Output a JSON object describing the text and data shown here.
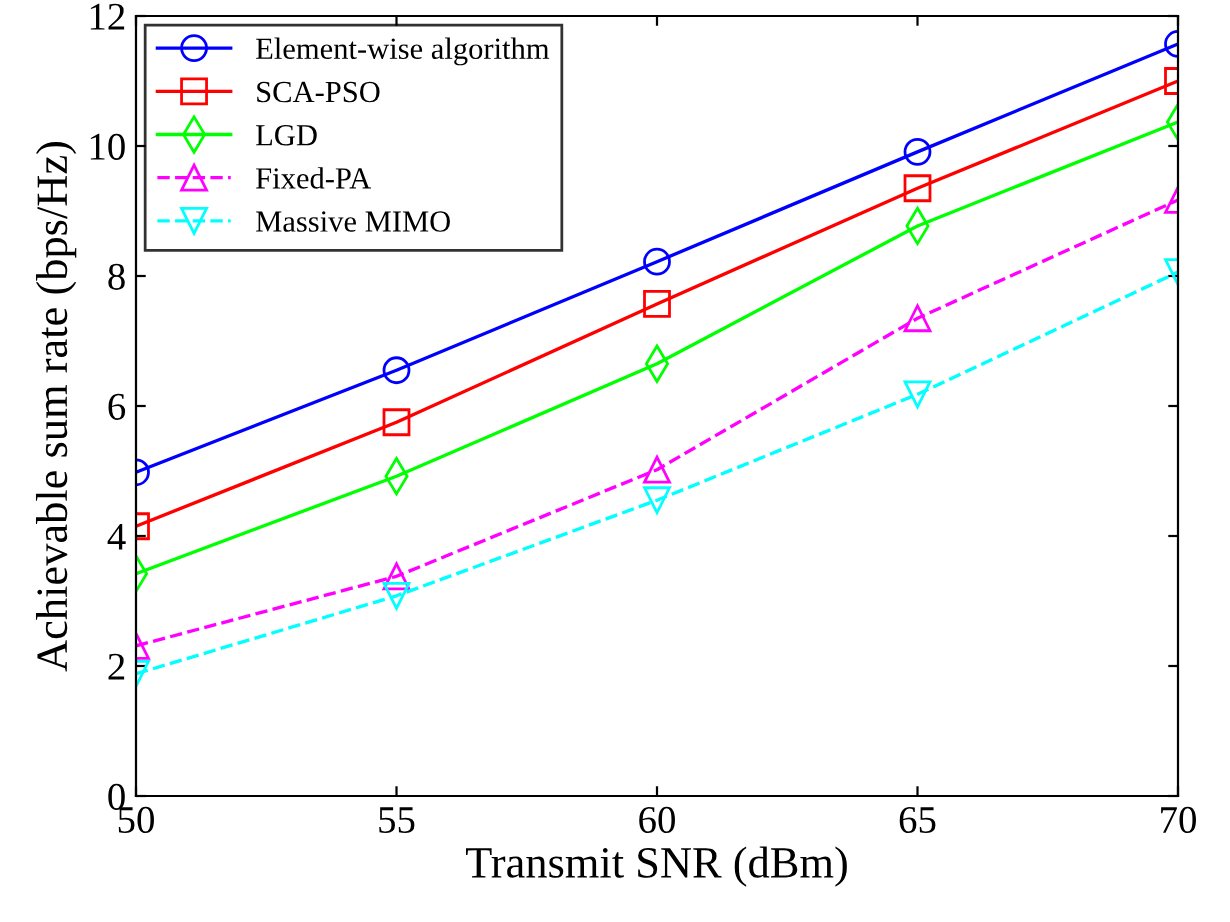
{
  "chart_data": {
    "type": "line",
    "xlabel": "Transmit SNR (dBm)",
    "ylabel": "Achievable sum rate (bps/Hz)",
    "x": [
      50,
      55,
      60,
      65,
      70
    ],
    "series": [
      {
        "name": "Element-wise algorithm",
        "color": "#0000ff",
        "marker": "circle",
        "line_style": "solid",
        "values": [
          4.98,
          6.55,
          8.22,
          9.91,
          11.57
        ]
      },
      {
        "name": "SCA-PSO",
        "color": "#ff0000",
        "marker": "square",
        "line_style": "solid",
        "values": [
          4.15,
          5.75,
          7.57,
          9.35,
          11.0
        ]
      },
      {
        "name": "LGD",
        "color": "#00ff00",
        "marker": "diamond",
        "line_style": "solid",
        "values": [
          3.42,
          4.92,
          6.65,
          8.77,
          10.37
        ]
      },
      {
        "name": "Fixed-PA",
        "color": "#ff00ff",
        "marker": "triangle",
        "line_style": "dashed",
        "values": [
          2.31,
          3.38,
          5.02,
          7.35,
          9.17
        ]
      },
      {
        "name": "Massive MIMO",
        "color": "#00ffff",
        "marker": "triangle_down",
        "line_style": "dashed",
        "values": [
          1.88,
          3.08,
          4.55,
          6.18,
          8.06
        ]
      }
    ],
    "xlim": [
      50,
      70
    ],
    "ylim": [
      0,
      12
    ],
    "xticks": [
      50,
      55,
      60,
      65,
      70
    ],
    "yticks": [
      0,
      2,
      4,
      6,
      8,
      10,
      12
    ],
    "grid": false,
    "legend": "top left"
  }
}
